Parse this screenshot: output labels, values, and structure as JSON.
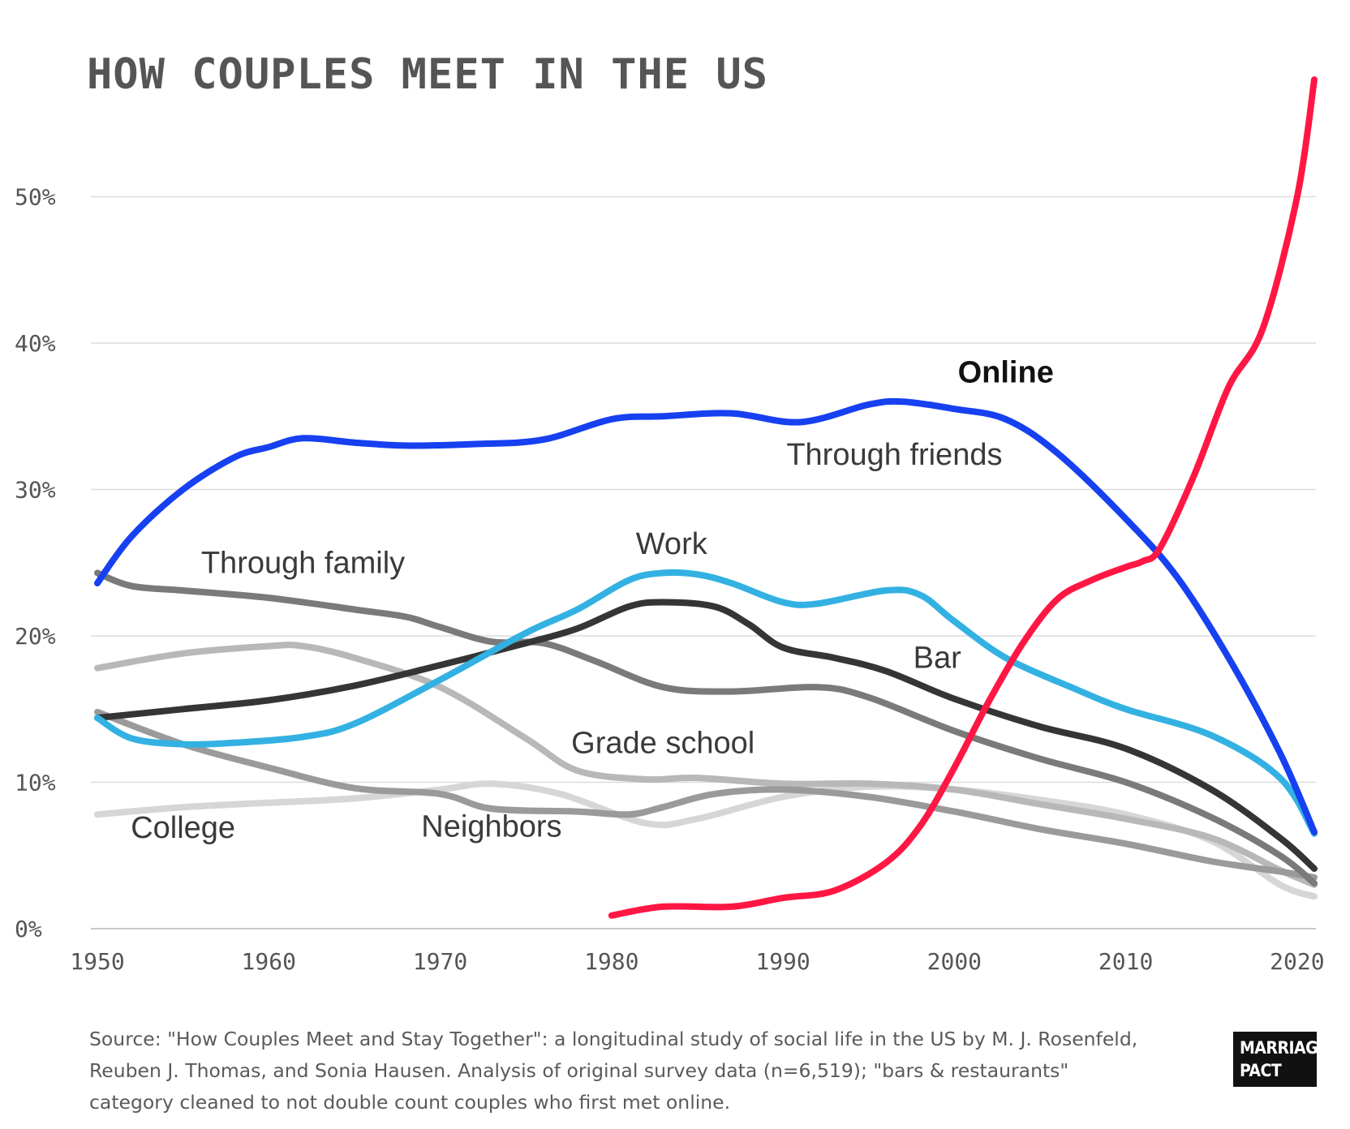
{
  "title": "HOW COUPLES MEET IN THE US",
  "source": "Source: \"How Couples Meet and Stay Together\": a longitudinal study of social life in the US by M. J. Rosenfeld, Reuben J. Thomas, and Sonia Hausen. Analysis of original survey data (n=6,519); \"bars & restaurants\" category cleaned to not double count couples who first met online.",
  "logo": {
    "line1": "MARRIAGE",
    "line2": "PACT"
  },
  "chart_data": {
    "type": "line",
    "title": "HOW COUPLES MEET IN THE US",
    "xlim": [
      1950,
      2021
    ],
    "ylim": [
      0,
      58
    ],
    "x_ticks": [
      1950,
      1960,
      1970,
      1980,
      1990,
      2000,
      2010,
      2020
    ],
    "x_tick_labels": [
      "1950",
      "1960",
      "1970",
      "1980",
      "1990",
      "2000",
      "2010",
      "2020"
    ],
    "y_ticks": [
      0,
      10,
      20,
      30,
      40,
      50
    ],
    "y_tick_labels": [
      "0%",
      "10%",
      "20%",
      "30%",
      "40%",
      "50%"
    ],
    "grid": "horizontal",
    "legend": "direct labels",
    "series": [
      {
        "name": "College",
        "color": "#d6d6d6",
        "label_pos": [
          1955,
          6.2
        ],
        "x": [
          1950,
          1955,
          1960,
          1965,
          1970,
          1973,
          1977,
          1982,
          1985,
          1990,
          1995,
          2000,
          2005,
          2010,
          2015,
          2019,
          2021
        ],
        "y": [
          7.8,
          8.3,
          8.6,
          8.9,
          9.5,
          9.9,
          9.2,
          7.2,
          7.5,
          9.0,
          9.7,
          9.5,
          8.8,
          7.8,
          6.0,
          3.0,
          2.2
        ]
      },
      {
        "name": "Grade school",
        "color": "#b8b8b8",
        "label_pos": [
          1983,
          12.0
        ],
        "x": [
          1950,
          1955,
          1960,
          1962,
          1965,
          1970,
          1975,
          1978,
          1982,
          1985,
          1990,
          1995,
          2000,
          2005,
          2010,
          2015,
          2019,
          2021
        ],
        "y": [
          17.8,
          18.8,
          19.3,
          19.3,
          18.5,
          16.5,
          13.0,
          10.8,
          10.2,
          10.3,
          9.9,
          9.9,
          9.5,
          8.5,
          7.5,
          6.2,
          4.0,
          3.0
        ]
      },
      {
        "name": "Neighbors",
        "color": "#9a9a9a",
        "label_pos": [
          1973,
          6.3
        ],
        "x": [
          1950,
          1955,
          1960,
          1965,
          1970,
          1973,
          1978,
          1981,
          1983,
          1986,
          1990,
          1995,
          2000,
          2005,
          2010,
          2015,
          2019,
          2021
        ],
        "y": [
          14.8,
          12.6,
          11.0,
          9.6,
          9.2,
          8.2,
          8.0,
          7.8,
          8.3,
          9.2,
          9.5,
          9.0,
          8.0,
          6.8,
          5.8,
          4.6,
          3.9,
          3.5
        ]
      },
      {
        "name": "Through family",
        "color": "#7a7a7a",
        "label_pos": [
          1962,
          24.3
        ],
        "x": [
          1950,
          1952,
          1955,
          1960,
          1965,
          1968,
          1970,
          1973,
          1976,
          1979,
          1983,
          1987,
          1992,
          1995,
          2000,
          2005,
          2010,
          2015,
          2019,
          2021
        ],
        "y": [
          24.3,
          23.4,
          23.1,
          22.6,
          21.8,
          21.3,
          20.6,
          19.6,
          19.5,
          18.3,
          16.5,
          16.2,
          16.5,
          15.8,
          13.5,
          11.6,
          10.0,
          7.6,
          5.0,
          3.1
        ]
      },
      {
        "name": "Bar",
        "color": "#353535",
        "label_pos": [
          1999,
          17.8
        ],
        "x": [
          1950,
          1955,
          1960,
          1965,
          1970,
          1975,
          1978,
          1981,
          1983,
          1986,
          1988,
          1990,
          1993,
          1996,
          2000,
          2005,
          2010,
          2015,
          2019,
          2021
        ],
        "y": [
          14.4,
          15.0,
          15.6,
          16.6,
          18.0,
          19.5,
          20.5,
          22.0,
          22.3,
          22.0,
          20.8,
          19.2,
          18.5,
          17.6,
          15.7,
          13.8,
          12.3,
          9.5,
          6.2,
          4.1
        ]
      },
      {
        "name": "Work",
        "color": "#33b1e2",
        "label_pos": [
          1983.5,
          25.6
        ],
        "x": [
          1950,
          1952,
          1955,
          1958,
          1962,
          1965,
          1970,
          1975,
          1978,
          1981,
          1983,
          1985,
          1987,
          1990,
          1992,
          1996,
          1998,
          2000,
          2003,
          2007,
          2010,
          2015,
          2019,
          2021
        ],
        "y": [
          14.4,
          13.0,
          12.6,
          12.7,
          13.1,
          14.0,
          17.0,
          20.2,
          21.8,
          23.8,
          24.3,
          24.2,
          23.6,
          22.3,
          22.2,
          23.1,
          22.8,
          21.0,
          18.5,
          16.4,
          15.0,
          13.2,
          10.3,
          6.5
        ]
      },
      {
        "name": "Through friends",
        "color": "#1640f0",
        "label_pos": [
          1996.5,
          31.7
        ],
        "x": [
          1950,
          1952,
          1955,
          1958,
          1960,
          1962,
          1965,
          1968,
          1972,
          1976,
          1980,
          1983,
          1987,
          1991,
          1995,
          1997,
          2000,
          2003,
          2006,
          2010,
          2013,
          2016,
          2019,
          2021
        ],
        "y": [
          23.6,
          26.8,
          30.0,
          32.2,
          32.9,
          33.5,
          33.2,
          33.0,
          33.1,
          33.4,
          34.8,
          35.0,
          35.2,
          34.6,
          35.8,
          36.0,
          35.5,
          34.8,
          32.5,
          28.0,
          24.0,
          18.5,
          12.0,
          6.6
        ]
      },
      {
        "name": "Online",
        "color": "#ff1744",
        "label_pos": [
          2003,
          37.3
        ],
        "x": [
          1980,
          1983,
          1987,
          1990,
          1993,
          1996,
          1998,
          2000,
          2002,
          2004,
          2006,
          2008,
          2010,
          2011,
          2012,
          2014,
          2016,
          2018,
          2020,
          2021
        ],
        "y": [
          0.9,
          1.5,
          1.5,
          2.1,
          2.6,
          4.5,
          7.0,
          11.0,
          15.5,
          19.5,
          22.5,
          23.8,
          24.7,
          25.1,
          26.0,
          31.0,
          37.0,
          41.0,
          50.0,
          58.0
        ]
      }
    ]
  }
}
